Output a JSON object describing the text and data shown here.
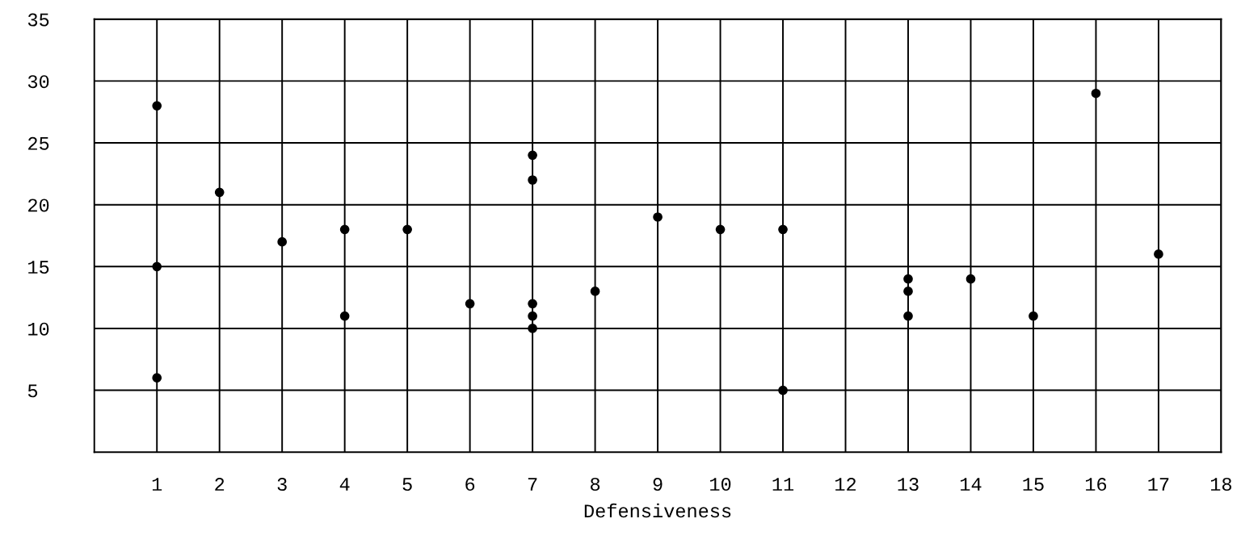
{
  "chart_data": {
    "type": "scatter",
    "xlabel": "Defensiveness",
    "x": [
      1,
      1,
      1,
      2,
      3,
      4,
      4,
      5,
      6,
      7,
      7,
      7,
      7,
      7,
      8,
      9,
      10,
      11,
      11,
      13,
      13,
      13,
      14,
      15,
      16,
      17
    ],
    "values": [
      28,
      15,
      6,
      21,
      17,
      18,
      11,
      18,
      12,
      24,
      22,
      12,
      11,
      10,
      13,
      19,
      18,
      18,
      5,
      14,
      13,
      11,
      14,
      11,
      29,
      16
    ],
    "color": "#000000",
    "marker": "circle",
    "xlim": [
      0,
      18
    ],
    "xticks": [
      1,
      2,
      3,
      4,
      5,
      6,
      7,
      8,
      9,
      10,
      11,
      12,
      13,
      14,
      15,
      16,
      17,
      18
    ],
    "ylim": [
      0,
      35
    ],
    "yticks": [
      5,
      10,
      15,
      20,
      25,
      30,
      35
    ],
    "grid": true
  }
}
